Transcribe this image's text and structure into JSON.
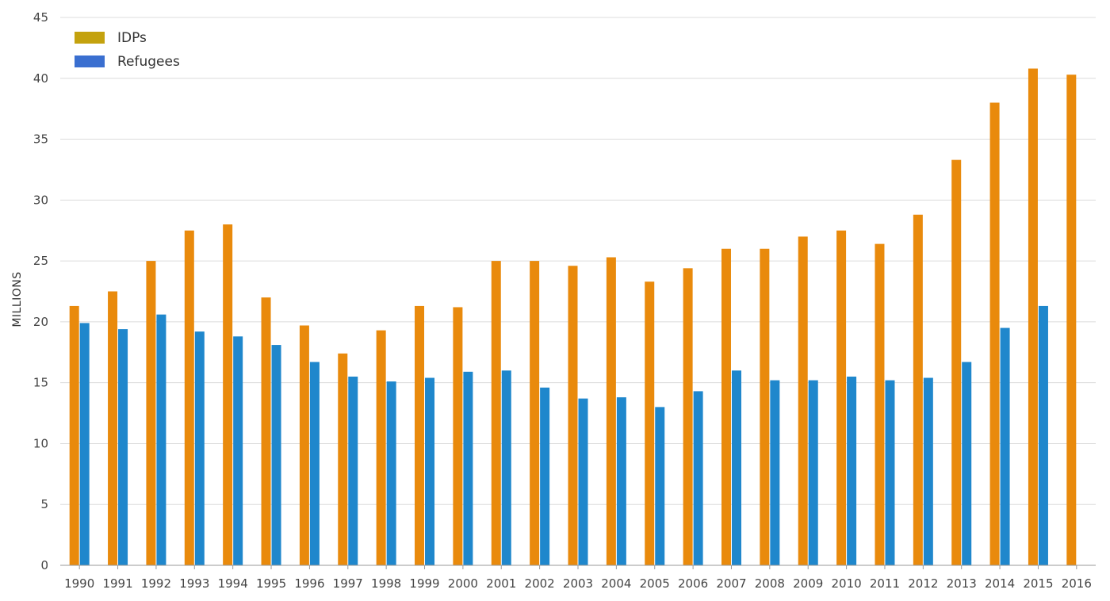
{
  "chart_data": {
    "type": "bar",
    "ylabel": "MILLIONS",
    "xlabel": "",
    "ylim": [
      0,
      45
    ],
    "yticks": [
      0,
      5,
      10,
      15,
      20,
      25,
      30,
      35,
      40,
      45
    ],
    "grid": "horizontal",
    "legend_position": "top-left",
    "categories": [
      "1990",
      "1991",
      "1992",
      "1993",
      "1994",
      "1995",
      "1996",
      "1997",
      "1998",
      "1999",
      "2000",
      "2001",
      "2002",
      "2003",
      "2004",
      "2005",
      "2006",
      "2007",
      "2008",
      "2009",
      "2010",
      "2011",
      "2012",
      "2013",
      "2014",
      "2015",
      "2016"
    ],
    "series": [
      {
        "name": "IDPs",
        "color": "#E98A0C",
        "legend_color": "#C4A20E",
        "values": [
          21.3,
          22.5,
          25.0,
          27.5,
          28.0,
          22.0,
          19.7,
          17.4,
          19.3,
          21.3,
          21.2,
          25.0,
          25.0,
          24.6,
          25.3,
          23.3,
          24.4,
          26.0,
          26.0,
          27.0,
          27.5,
          26.4,
          28.8,
          33.3,
          38.0,
          40.8,
          40.3
        ]
      },
      {
        "name": "Refugees",
        "color": "#1F87CC",
        "legend_color": "#3A6FD0",
        "values": [
          19.9,
          19.4,
          20.6,
          19.2,
          18.8,
          18.1,
          16.7,
          15.5,
          15.1,
          15.4,
          15.9,
          16.0,
          14.6,
          13.7,
          13.8,
          13.0,
          14.3,
          16.0,
          15.2,
          15.2,
          15.5,
          15.2,
          15.4,
          16.7,
          19.5,
          21.3,
          null
        ]
      }
    ]
  }
}
